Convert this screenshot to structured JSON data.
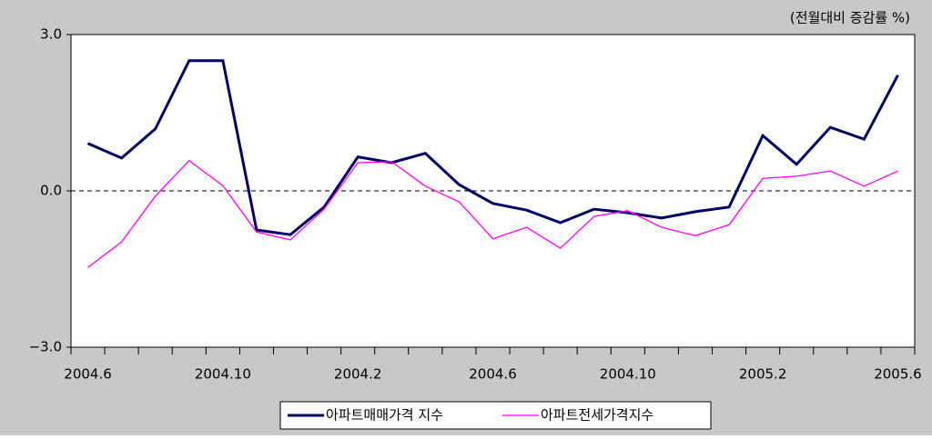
{
  "chart_data": {
    "type": "line",
    "annotation": "(전월대비 증감률 %)",
    "categories": [
      "2004.6",
      null,
      null,
      null,
      "2004.10",
      null,
      null,
      null,
      "2004.2",
      null,
      null,
      null,
      "2004.6",
      null,
      null,
      null,
      "2004.10",
      null,
      null,
      null,
      "2005.2",
      null,
      null,
      null,
      "2005.6"
    ],
    "series": [
      {
        "name": "아파트매매가격 지수",
        "color": "#000066",
        "values": [
          0.91,
          0.63,
          1.19,
          2.5,
          2.5,
          -0.75,
          -0.84,
          -0.31,
          0.65,
          0.54,
          0.72,
          0.12,
          -0.24,
          -0.37,
          -0.61,
          -0.35,
          -0.42,
          -0.52,
          -0.4,
          -0.31,
          1.06,
          0.51,
          1.22,
          0.99,
          2.22
        ]
      },
      {
        "name": "아파트전세가격지수",
        "color": "#ff00ff",
        "values": [
          -1.47,
          -0.98,
          -0.1,
          0.58,
          0.1,
          -0.79,
          -0.94,
          -0.35,
          0.54,
          0.56,
          0.09,
          -0.21,
          -0.92,
          -0.7,
          -1.1,
          -0.49,
          -0.38,
          -0.7,
          -0.86,
          -0.65,
          0.24,
          0.28,
          0.38,
          0.09,
          0.38
        ]
      }
    ],
    "ylim": [
      -3,
      3
    ],
    "yticks": [
      {
        "value": 3,
        "label": "3.0"
      },
      {
        "value": 0,
        "label": "0.0"
      },
      {
        "value": -3,
        "label": "−3.0"
      }
    ]
  }
}
